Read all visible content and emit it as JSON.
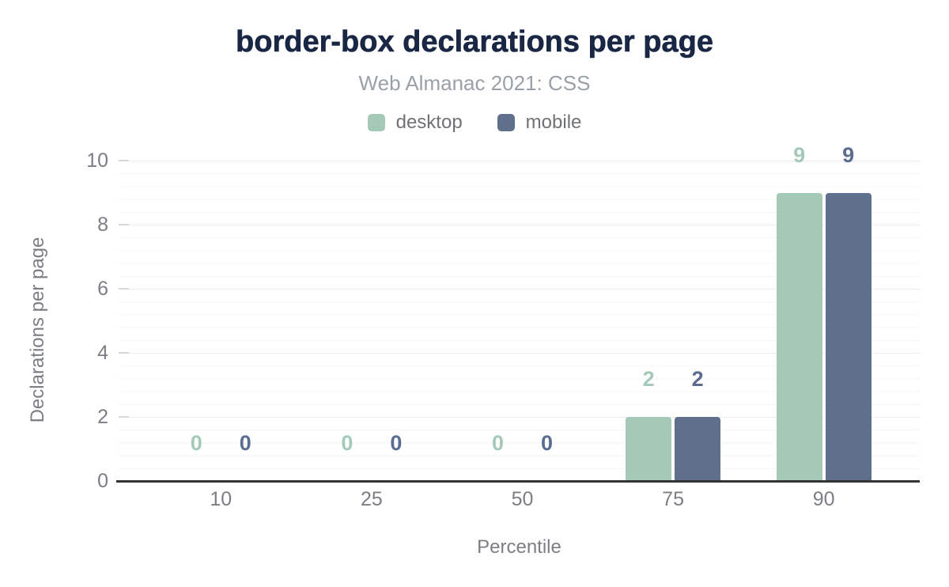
{
  "title": "border-box declarations per page",
  "subtitle": "Web Almanac 2021: CSS",
  "chart_data": {
    "type": "bar",
    "title": "border-box declarations per page",
    "subtitle": "Web Almanac 2021: CSS",
    "categories": [
      "10",
      "25",
      "50",
      "75",
      "90"
    ],
    "series": [
      {
        "name": "desktop",
        "color": "#a5c9b7",
        "label_color": "#a5c9b7",
        "values": [
          0,
          0,
          0,
          2,
          9
        ]
      },
      {
        "name": "mobile",
        "color": "#5f708c",
        "label_color": "#5a6d90",
        "values": [
          0,
          0,
          0,
          2,
          9
        ]
      }
    ],
    "xlabel": "Percentile",
    "ylabel": "Declarations per page",
    "ylim": [
      0,
      10
    ],
    "yticks": [
      0,
      2,
      4,
      6,
      8,
      10
    ],
    "grid": "horizontal major every 2, minor every 0.4",
    "legend_position": "top",
    "value_labels": true,
    "axis_line_color": "#333333",
    "text_colors": {
      "title": "#1a2744",
      "subtitle": "#9aa0a8",
      "axis": "#7b7e82",
      "legend": "#6f7275"
    }
  }
}
